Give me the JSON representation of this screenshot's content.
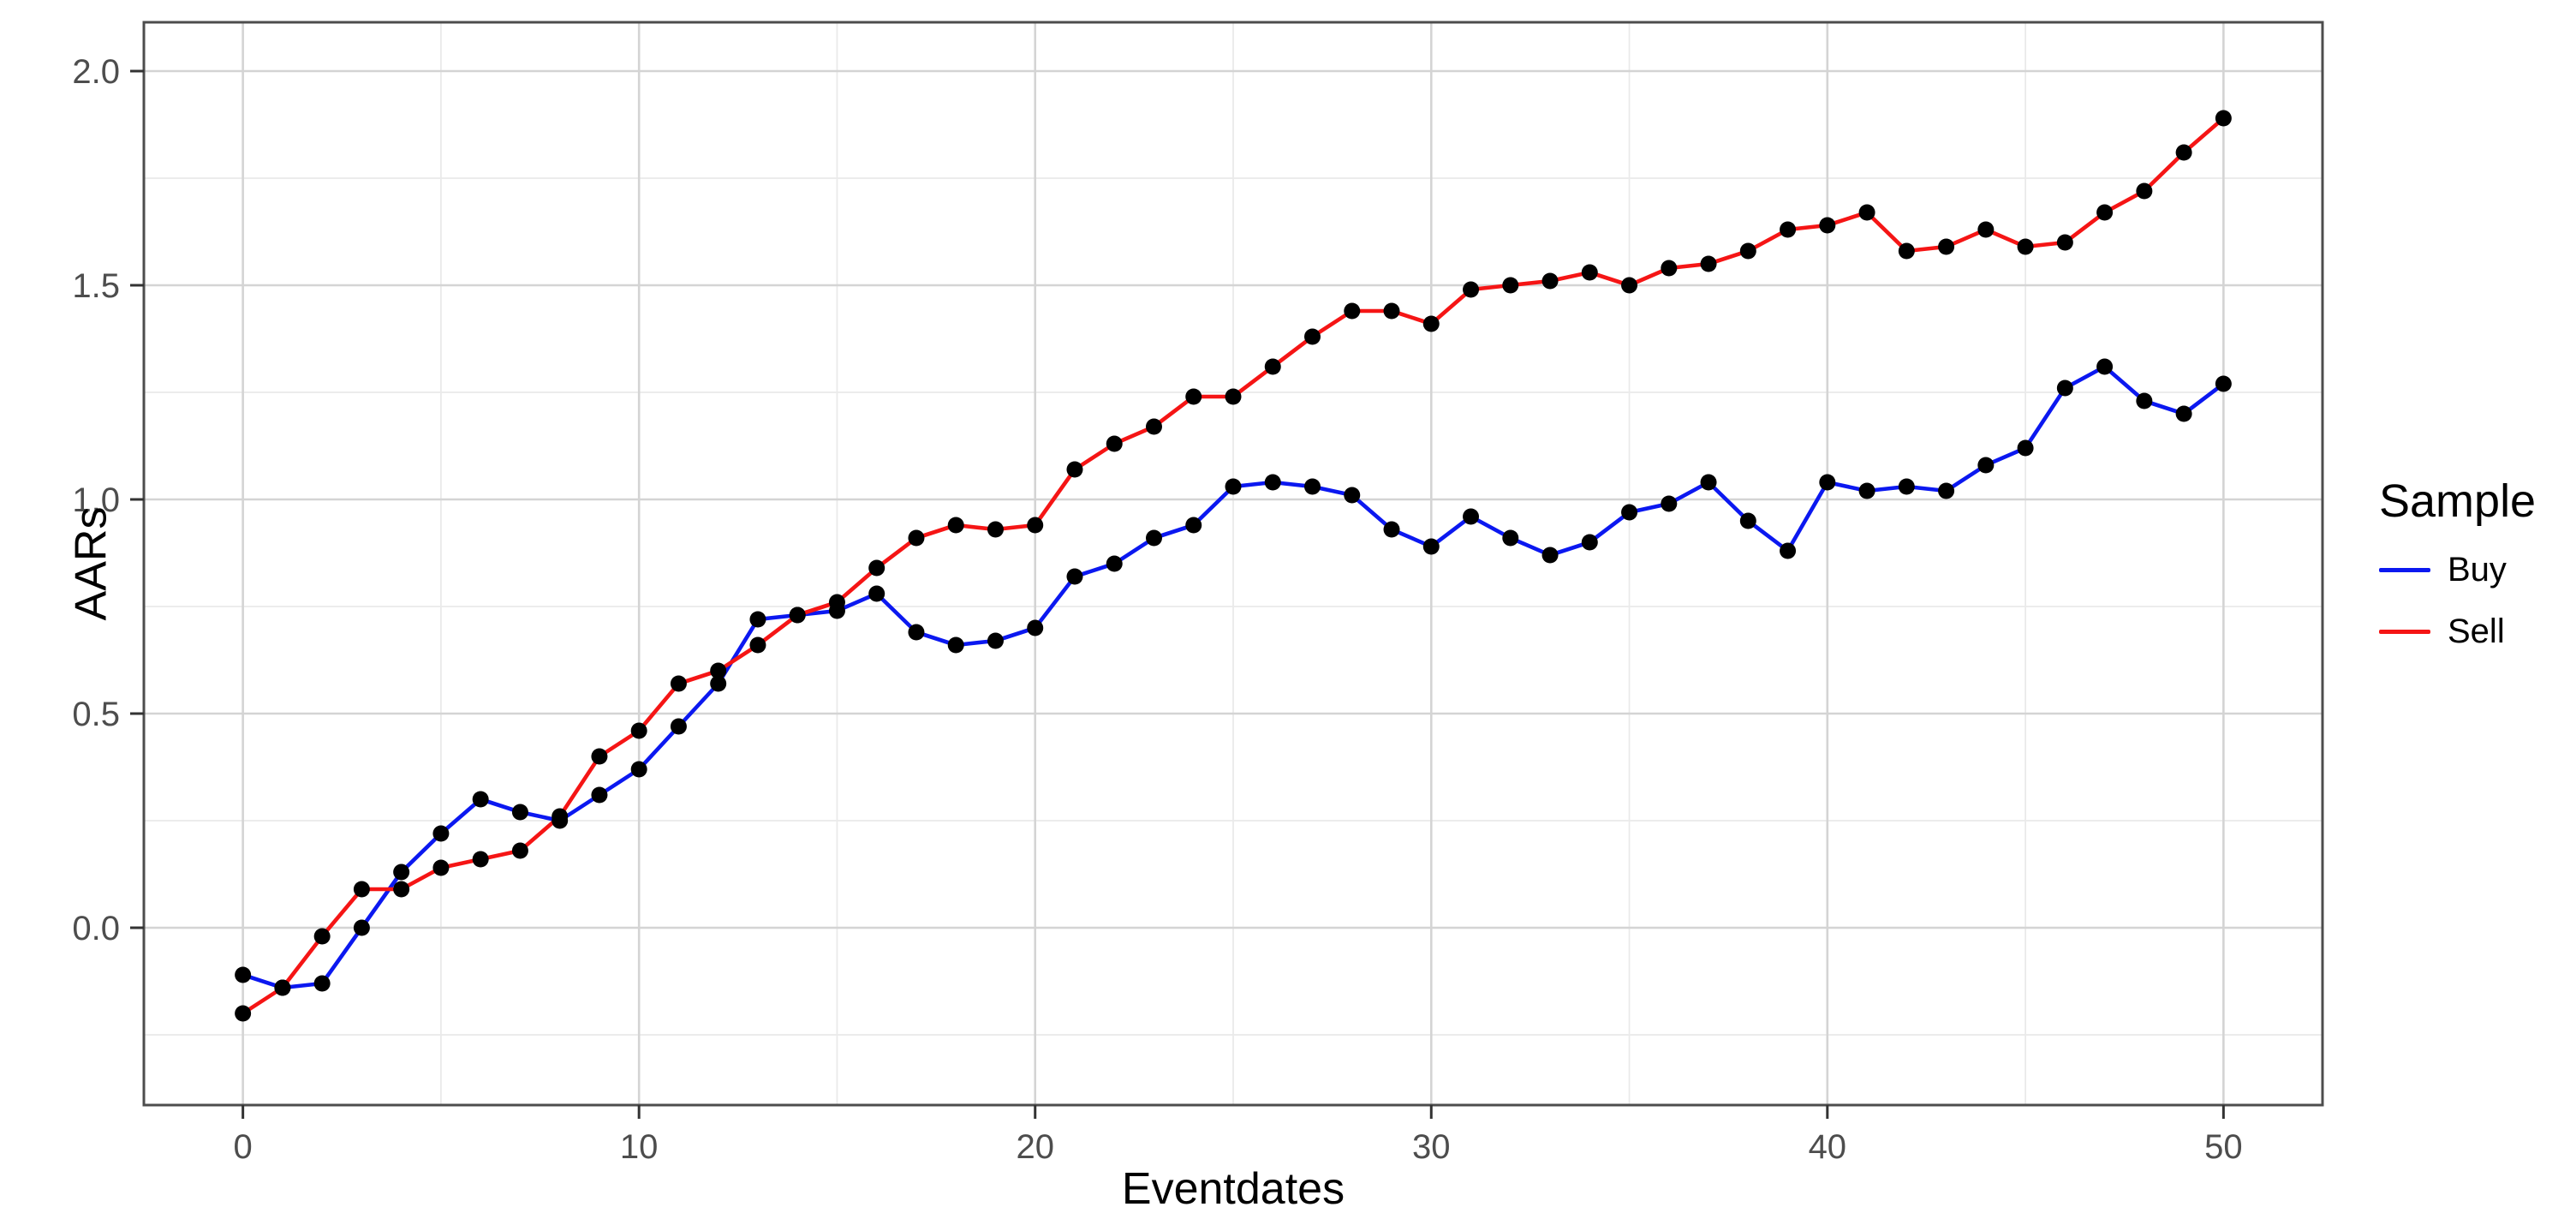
{
  "chart_data": {
    "type": "line",
    "title": "",
    "xlabel": "Eventdates",
    "ylabel": "AARs",
    "x": [
      0,
      1,
      2,
      3,
      4,
      5,
      6,
      7,
      8,
      9,
      10,
      11,
      12,
      13,
      14,
      15,
      16,
      17,
      18,
      19,
      20,
      21,
      22,
      23,
      24,
      25,
      26,
      27,
      28,
      29,
      30,
      31,
      32,
      33,
      34,
      35,
      36,
      37,
      38,
      39,
      40,
      41,
      42,
      43,
      44,
      45,
      46,
      47,
      48,
      49,
      50
    ],
    "series": [
      {
        "name": "Buy",
        "color": "#0b18f0",
        "values": [
          -0.11,
          -0.14,
          -0.13,
          0.0,
          0.13,
          0.22,
          0.3,
          0.27,
          0.25,
          0.31,
          0.37,
          0.47,
          0.57,
          0.72,
          0.73,
          0.74,
          0.78,
          0.69,
          0.66,
          0.67,
          0.7,
          0.82,
          0.85,
          0.91,
          0.94,
          1.03,
          1.04,
          1.03,
          1.01,
          0.93,
          0.89,
          0.96,
          0.91,
          0.87,
          0.9,
          0.97,
          0.99,
          1.04,
          0.95,
          0.88,
          1.04,
          1.02,
          1.03,
          1.02,
          1.08,
          1.12,
          1.26,
          1.31,
          1.23,
          1.2,
          1.27
        ]
      },
      {
        "name": "Sell",
        "color": "#f51515",
        "values": [
          -0.2,
          -0.14,
          -0.02,
          0.09,
          0.09,
          0.14,
          0.16,
          0.18,
          0.26,
          0.4,
          0.46,
          0.57,
          0.6,
          0.66,
          0.73,
          0.76,
          0.84,
          0.91,
          0.94,
          0.93,
          0.94,
          1.07,
          1.13,
          1.17,
          1.24,
          1.24,
          1.31,
          1.38,
          1.44,
          1.44,
          1.41,
          1.49,
          1.5,
          1.51,
          1.53,
          1.5,
          1.54,
          1.55,
          1.58,
          1.63,
          1.64,
          1.67,
          1.58,
          1.59,
          1.63,
          1.59,
          1.6,
          1.67,
          1.72,
          1.81,
          1.89
        ]
      }
    ],
    "point_color": "#000000",
    "xlim": [
      -2.5,
      52.5
    ],
    "ylim": [
      -0.414,
      2.114
    ],
    "x_ticks": [
      0,
      10,
      20,
      30,
      40,
      50
    ],
    "x_tick_labels": [
      "0",
      "10",
      "20",
      "30",
      "40",
      "50"
    ],
    "x_minor_ticks": [
      5,
      15,
      25,
      35,
      45
    ],
    "y_ticks": [
      0.0,
      0.5,
      1.0,
      1.5,
      2.0
    ],
    "y_tick_labels": [
      "0.0",
      "0.5",
      "1.0",
      "1.5",
      "2.0"
    ],
    "y_minor_ticks": [
      -0.25,
      0.25,
      0.75,
      1.25,
      1.75
    ],
    "grid": true,
    "legend_position": "right",
    "legend": {
      "title": "Sample",
      "items": [
        {
          "label": "Buy",
          "color": "#0b18f0"
        },
        {
          "label": "Sell",
          "color": "#f51515"
        }
      ]
    },
    "style": {
      "panel_border_color": "#4d4d4d",
      "major_grid_color": "#d4d4d4",
      "minor_grid_color": "#eaeaea",
      "tick_mark_color": "#333333",
      "tick_label_color": "#4d4d4d",
      "background_color": "#ffffff"
    }
  }
}
